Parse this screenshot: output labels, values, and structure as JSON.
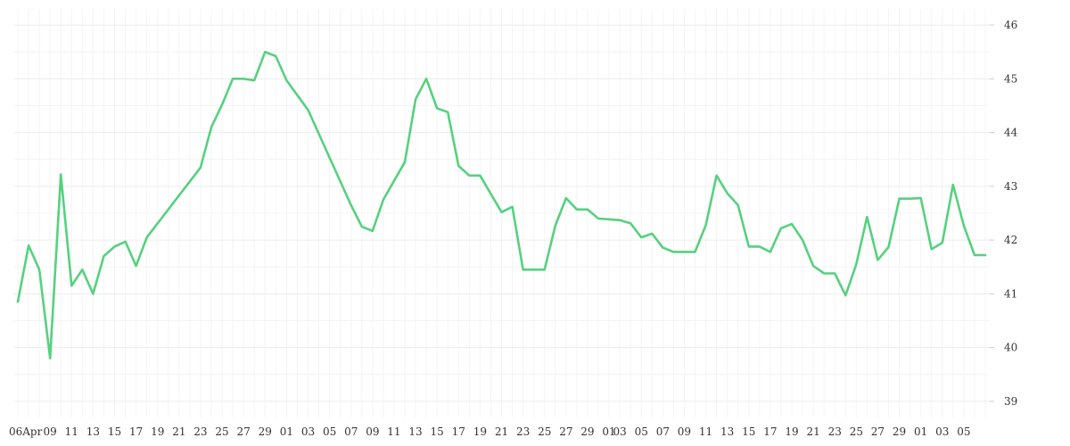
{
  "chart_data": {
    "type": "line",
    "title": "",
    "xlabel": "",
    "ylabel": "",
    "ylim": [
      38.7,
      46.3
    ],
    "y_ticks": [
      39,
      40,
      41,
      42,
      43,
      44,
      45,
      46
    ],
    "y_axis_position": "right",
    "grid": true,
    "line_color": "#56d17f",
    "x_tick_labels": [
      "06Apr",
      "09",
      "11",
      "13",
      "15",
      "17",
      "19",
      "21",
      "23",
      "25",
      "27",
      "29",
      "01",
      "03",
      "05",
      "07",
      "09",
      "11",
      "13",
      "15",
      "17",
      "19",
      "21",
      "23",
      "25",
      "27",
      "29",
      "01",
      "03",
      "05",
      "07",
      "09",
      "11",
      "13",
      "15",
      "17",
      "19",
      "21",
      "23",
      "25",
      "27",
      "29",
      "01",
      "03",
      "05"
    ],
    "series": [
      {
        "name": "",
        "x": [
          "2024-04-06",
          "2024-04-07",
          "2024-04-08",
          "2024-04-09",
          "2024-04-10",
          "2024-04-11",
          "2024-04-12",
          "2024-04-13",
          "2024-04-14",
          "2024-04-15",
          "2024-04-16",
          "2024-04-17",
          "2024-04-18",
          "2024-04-23",
          "2024-04-24",
          "2024-04-25",
          "2024-04-26",
          "2024-04-27",
          "2024-04-28",
          "2024-04-29",
          "2024-04-30",
          "2024-05-01",
          "2024-05-03",
          "2024-05-07",
          "2024-05-08",
          "2024-05-09",
          "2024-05-10",
          "2024-05-12",
          "2024-05-13",
          "2024-05-14",
          "2024-05-15",
          "2024-05-16",
          "2024-05-17",
          "2024-05-18",
          "2024-05-19",
          "2024-05-21",
          "2024-05-22",
          "2024-05-23",
          "2024-05-24",
          "2024-05-25",
          "2024-05-26",
          "2024-05-27",
          "2024-05-28",
          "2024-05-29",
          "2024-05-30",
          "2024-06-01",
          "2024-06-02",
          "2024-06-03",
          "2024-06-04",
          "2024-06-05",
          "2024-06-06",
          "2024-06-07",
          "2024-06-08",
          "2024-06-09",
          "2024-06-10",
          "2024-06-11",
          "2024-06-12",
          "2024-06-13",
          "2024-06-14",
          "2024-06-15",
          "2024-06-16",
          "2024-06-17",
          "2024-06-18",
          "2024-06-19",
          "2024-06-20",
          "2024-06-21",
          "2024-06-22",
          "2024-06-23",
          "2024-06-24",
          "2024-06-25",
          "2024-06-26",
          "2024-06-27",
          "2024-06-28",
          "2024-06-29",
          "2024-06-30",
          "2024-07-01",
          "2024-07-02",
          "2024-07-03",
          "2024-07-04",
          "2024-07-05"
        ],
        "y": [
          40.85,
          41.9,
          41.45,
          39.8,
          43.22,
          41.15,
          41.45,
          41.0,
          41.7,
          41.88,
          41.97,
          41.52,
          42.05,
          43.35,
          44.1,
          44.52,
          45.0,
          45.0,
          44.97,
          45.5,
          45.42,
          44.97,
          44.42,
          42.65,
          42.25,
          42.17,
          42.75,
          43.45,
          44.62,
          45.0,
          44.45,
          44.38,
          43.38,
          43.2,
          43.2,
          42.52,
          42.62,
          41.45,
          41.45,
          41.45,
          42.27,
          42.78,
          42.57,
          42.57,
          42.4,
          42.37,
          42.31,
          42.05,
          42.12,
          41.86,
          41.78,
          41.78,
          41.78,
          42.28,
          43.2,
          42.87,
          42.65,
          41.88,
          41.88,
          41.78,
          42.22,
          42.3,
          42.0,
          41.52,
          41.38,
          41.38,
          40.97,
          41.55,
          42.43,
          41.63,
          41.87,
          42.77,
          42.77,
          42.78,
          41.83,
          41.95,
          43.03,
          42.27,
          41.72,
          41.72
        ]
      }
    ]
  }
}
